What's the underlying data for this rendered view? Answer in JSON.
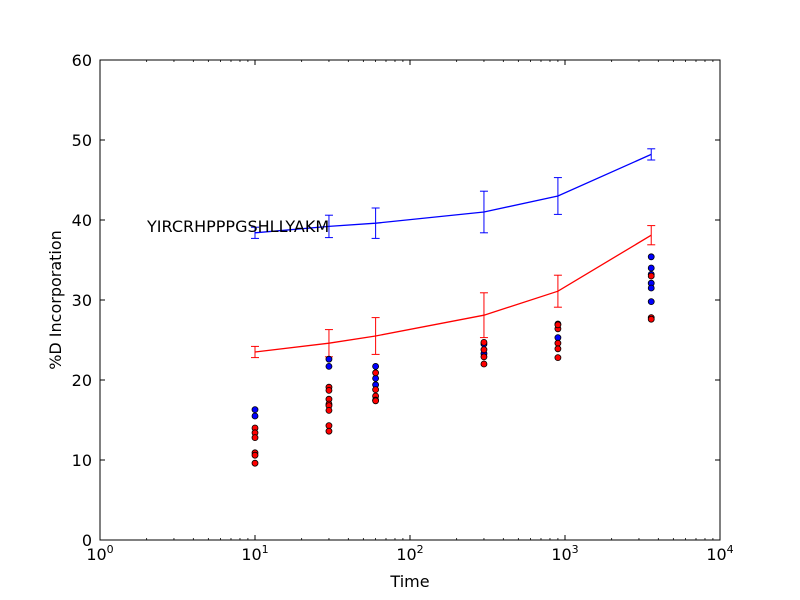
{
  "chart_data": {
    "type": "scatter",
    "title": "",
    "annotation": "YIRCRHPPPGSHLLYAKM",
    "xlabel": "Time",
    "ylabel": "%D Incorporation",
    "xscale": "log",
    "xlim": [
      1,
      10000
    ],
    "ylim": [
      0,
      60
    ],
    "x_ticks": [
      1,
      10,
      100,
      1000,
      10000
    ],
    "x_tick_labels": [
      {
        "base": "10",
        "exp": "0"
      },
      {
        "base": "10",
        "exp": "1"
      },
      {
        "base": "10",
        "exp": "2"
      },
      {
        "base": "10",
        "exp": "3"
      },
      {
        "base": "10",
        "exp": "4"
      }
    ],
    "y_ticks": [
      0,
      10,
      20,
      30,
      40,
      50,
      60
    ],
    "grid": false,
    "lines": [
      {
        "color": "#0000ff",
        "x": [
          10,
          30,
          60,
          300,
          900,
          3600
        ],
        "y": [
          38.4,
          39.2,
          39.6,
          41.0,
          43.0,
          48.2
        ],
        "err": [
          0.7,
          1.4,
          1.9,
          2.6,
          2.3,
          0.7
        ]
      },
      {
        "color": "#ff0000",
        "x": [
          10,
          30,
          60,
          300,
          900,
          3600
        ],
        "y": [
          23.5,
          24.6,
          25.5,
          28.1,
          31.1,
          38.1
        ],
        "err": [
          0.7,
          1.7,
          2.3,
          2.8,
          2.0,
          1.2
        ]
      }
    ],
    "points": [
      {
        "color": "#0000ff",
        "x": [
          10,
          10,
          30,
          30,
          60,
          60,
          60,
          300,
          300,
          900,
          900,
          3600,
          3600,
          3600,
          3600,
          3600,
          3600
        ],
        "y": [
          16.3,
          15.5,
          22.6,
          21.7,
          21.7,
          20.2,
          19.4,
          24.5,
          23.3,
          27.0,
          25.3,
          35.4,
          34.0,
          33.2,
          32.1,
          31.5,
          29.8
        ]
      },
      {
        "color": "#ff0000",
        "x": [
          10,
          10,
          10,
          10,
          10,
          10,
          30,
          30,
          30,
          30,
          30,
          30,
          30,
          30,
          60,
          60,
          60,
          60,
          60,
          300,
          300,
          300,
          300,
          900,
          900,
          900,
          900,
          900,
          3600,
          3600,
          3600
        ],
        "y": [
          14.0,
          13.4,
          12.8,
          10.9,
          10.6,
          9.6,
          19.1,
          18.7,
          17.6,
          17.0,
          16.8,
          16.2,
          14.3,
          13.6,
          20.9,
          18.8,
          18.0,
          17.5,
          17.4,
          24.7,
          23.8,
          22.9,
          22.0,
          26.4,
          24.6,
          23.9,
          22.8,
          26.9,
          33.0,
          27.8,
          27.6
        ]
      }
    ]
  }
}
